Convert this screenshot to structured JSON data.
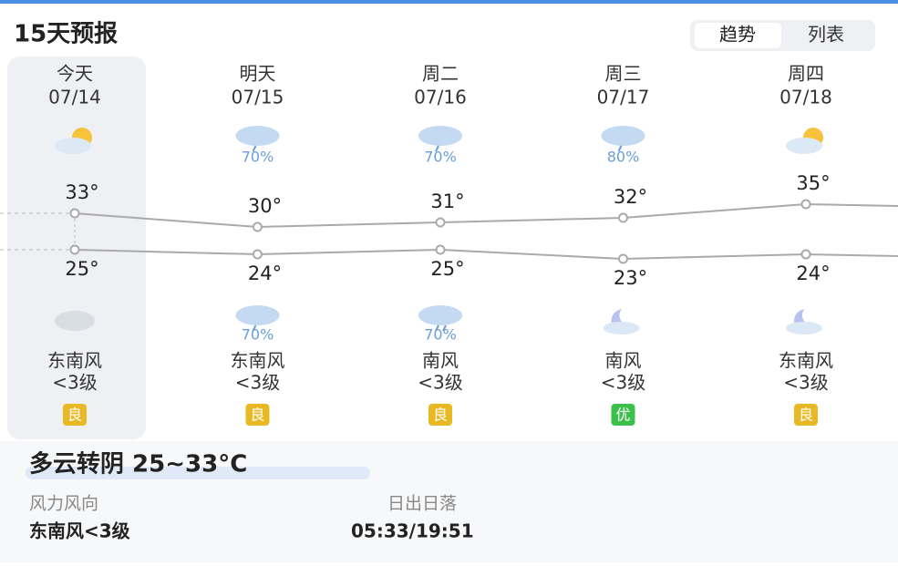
{
  "header": {
    "title": "15天预报",
    "tabs": [
      "趋势",
      "列表"
    ]
  },
  "days": [
    {
      "name": "今天",
      "date": "07/14",
      "day_precip": null,
      "high": 33,
      "high_label": "33°",
      "low": 25,
      "low_label": "25°",
      "night_precip": null,
      "wind_dir": "东南风",
      "wind_level": "<3级",
      "aqi": "良"
    },
    {
      "name": "明天",
      "date": "07/15",
      "day_precip": "70%",
      "high": 30,
      "high_label": "30°",
      "low": 24,
      "low_label": "24°",
      "night_precip": "70%",
      "wind_dir": "东南风",
      "wind_level": "<3级",
      "aqi": "良"
    },
    {
      "name": "周二",
      "date": "07/16",
      "day_precip": "70%",
      "high": 31,
      "high_label": "31°",
      "low": 25,
      "low_label": "25°",
      "night_precip": "70%",
      "wind_dir": "南风",
      "wind_level": "<3级",
      "aqi": "良"
    },
    {
      "name": "周三",
      "date": "07/17",
      "day_precip": "80%",
      "high": 32,
      "high_label": "32°",
      "low": 23,
      "low_label": "23°",
      "night_precip": null,
      "wind_dir": "南风",
      "wind_level": "<3级",
      "aqi": "优"
    },
    {
      "name": "周四",
      "date": "07/18",
      "day_precip": null,
      "high": 35,
      "high_label": "35°",
      "low": 24,
      "low_label": "24°",
      "night_precip": null,
      "wind_dir": "东南风",
      "wind_level": "<3级",
      "aqi": "良"
    }
  ],
  "detail": {
    "summary": "多云转阴 25~33°C",
    "wind_label": "风力风向",
    "wind_value": "东南风<3级",
    "sun_label": "日出日落",
    "sun_value": "05:33/19:51"
  }
}
